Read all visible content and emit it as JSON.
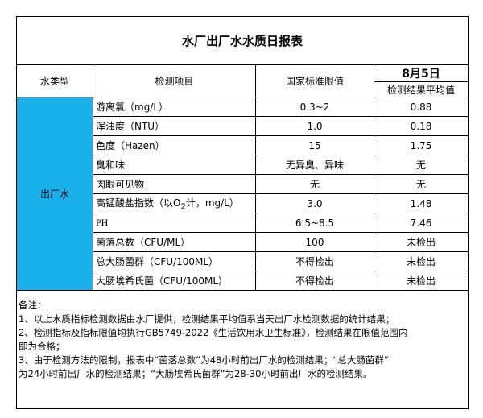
{
  "title": "水厂出厂水水质日报表",
  "headers": {
    "type": "水类型",
    "item": "检测项目",
    "standard": "国家标准限值",
    "date": "8月5日",
    "result": "检测结果平均值"
  },
  "water_type": "出厂水",
  "rows": [
    {
      "item": "游离氯（mg/L）",
      "standard": "0.3~2",
      "result": "0.88"
    },
    {
      "item": "浑浊度（NTU）",
      "standard": "1.0",
      "result": "0.18"
    },
    {
      "item": "色度（Hazen）",
      "standard": "15",
      "result": "1.75"
    },
    {
      "item": "臭和味",
      "standard": "无异臭、异味",
      "result": "无"
    },
    {
      "item": "肉眼可见物",
      "standard": "无",
      "result": "无"
    },
    {
      "item_prefix": "高锰酸盐指数（以O",
      "item_sub": "2",
      "item_suffix": "计，mg/L）",
      "standard": "3.0",
      "result": "1.48"
    },
    {
      "item": "PH",
      "standard": "6.5~8.5",
      "result": "7.46"
    },
    {
      "item": "菌落总数（CFU/ML）",
      "standard": "100",
      "result": "未检出"
    },
    {
      "item": "总大肠菌群（CFU/100ML）",
      "standard": "不得检出",
      "result": "未检出"
    },
    {
      "item": "大肠埃希氏菌（CFU/100ML）",
      "standard": "不得检出",
      "result": "未检出"
    }
  ],
  "notes": [
    "备注：",
    "1、以上水质指标检测数据由水厂提供，检测结果平均值系当天出厂水检测数据的统计结果；",
    "2、检测指标及指标限值均执行GB5749-2022《生活饮用水卫生标准》，检测结果在限值范围内",
    "即为合格；",
    "3、由于检测方法的限制，报表中“菌落总数”为48小时前出厂水的检测结果；“总大肠菌群”",
    "为24小时前出厂水的检测结果；“大肠埃希氏菌群”为28-30小时前出厂水的检测结果。"
  ],
  "colors": {
    "water_type_bg": "#1ab0ec"
  }
}
